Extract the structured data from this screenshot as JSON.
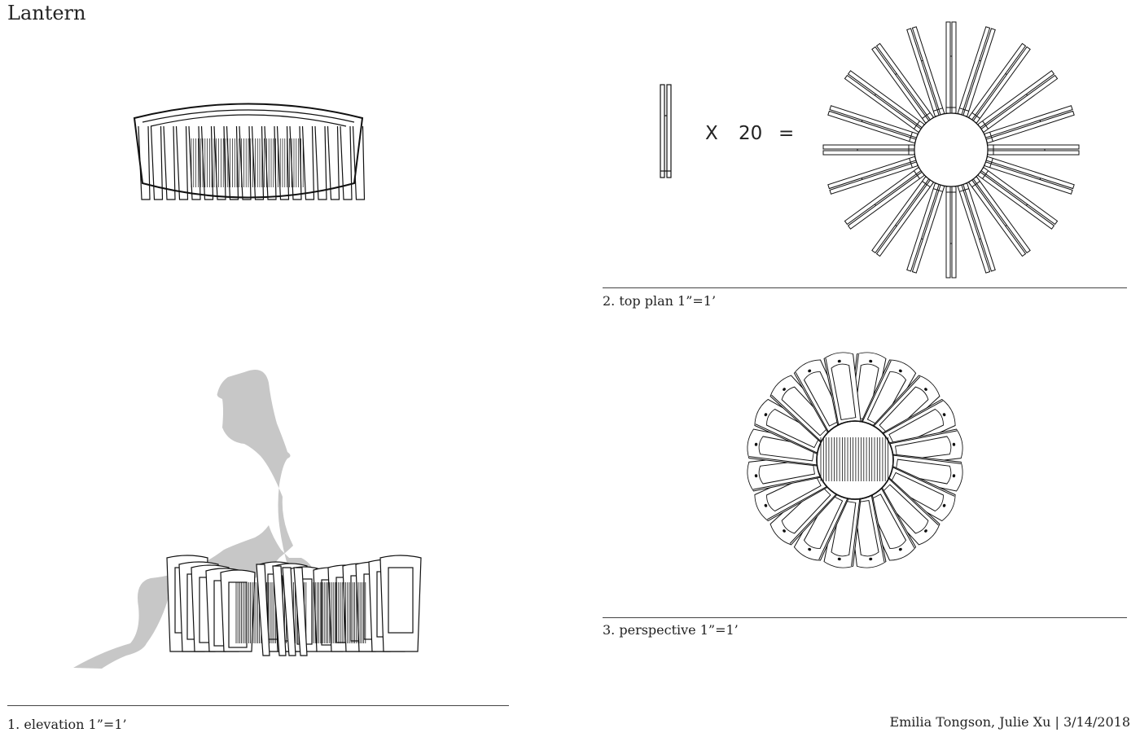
{
  "title": "Lantern",
  "captions": {
    "elevation": "1. elevation 1”=1’",
    "top_plan": "2. top plan 1”=1’",
    "perspective": "3. perspective 1”=1’"
  },
  "credits": "Emilia Tongson,  Julie Xu | 3/14/2018",
  "equation": {
    "multiply": "X",
    "count": "20",
    "equals": "="
  },
  "colors": {
    "line": "#111111",
    "silhouette": "#c7c7c7",
    "rule": "#444444"
  }
}
